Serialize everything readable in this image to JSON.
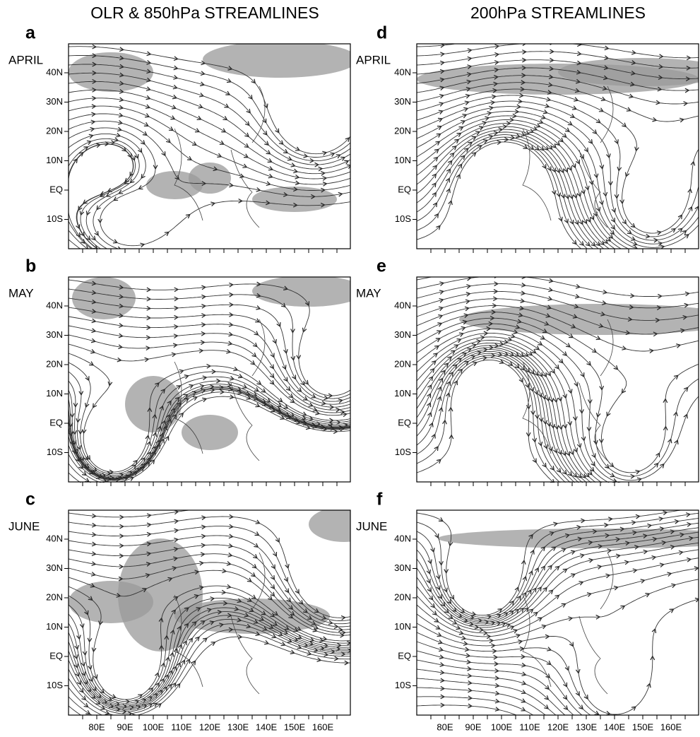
{
  "columns": [
    {
      "title": "OLR & 850hPa STREAMLINES",
      "panels": [
        {
          "letter": "a",
          "month": "APRIL"
        },
        {
          "letter": "b",
          "month": "MAY"
        },
        {
          "letter": "c",
          "month": "JUNE"
        }
      ]
    },
    {
      "title": "200hPa STREAMLINES",
      "panels": [
        {
          "letter": "d",
          "month": "APRIL"
        },
        {
          "letter": "e",
          "month": "MAY"
        },
        {
          "letter": "f",
          "month": "JUNE"
        }
      ]
    }
  ],
  "latitude_labels": [
    "40N",
    "30N",
    "20N",
    "10N",
    "EQ",
    "10S"
  ],
  "longitude_labels": [
    "80E",
    "90E",
    "100E",
    "110E",
    "120E",
    "130E",
    "140E",
    "150E",
    "160E"
  ]
}
